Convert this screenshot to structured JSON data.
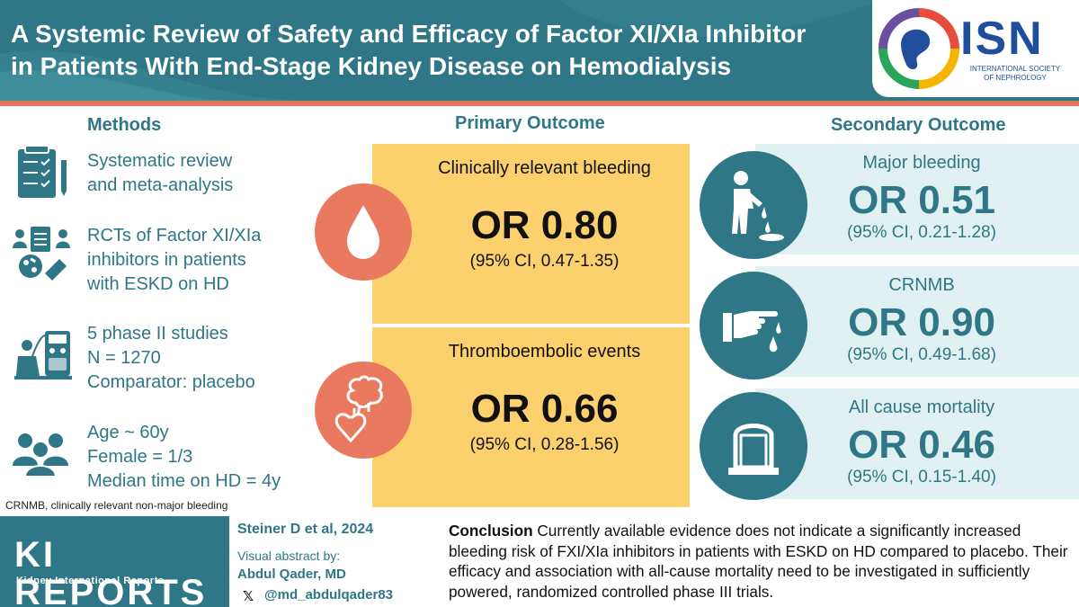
{
  "header": {
    "title_line1": "A Systemic Review of Safety and Efficacy of Factor XI/XIa Inhibitor",
    "title_line2": "in Patients With End-Stage Kidney Disease on Hemodialysis",
    "logo_text": "ISN",
    "logo_sub_line1": "INTERNATIONAL SOCIETY",
    "logo_sub_line2": "OF NEPHROLOGY"
  },
  "methods": {
    "title": "Methods",
    "items": [
      {
        "icon": "checklist-icon",
        "lines": [
          "Systematic review",
          "and meta-analysis"
        ]
      },
      {
        "icon": "rct-icon",
        "lines": [
          "RCTs of Factor XI/XIa",
          "inhibitors in patients",
          "with ESKD on HD"
        ]
      },
      {
        "icon": "dialysis-icon",
        "lines": [
          "5 phase II studies",
          "N = 1270",
          "Comparator: placebo"
        ]
      },
      {
        "icon": "people-icon",
        "lines": [
          "Age ~ 60y",
          "Female = 1/3",
          "Median time on HD = 4y"
        ]
      }
    ],
    "footnote": "CRNMB, clinically relevant non-major bleeding"
  },
  "primary": {
    "title": "Primary Outcome",
    "outcomes": [
      {
        "label": "Clinically relevant bleeding",
        "or": "OR 0.80",
        "ci": "(95% CI, 0.47-1.35)",
        "icon": "blood-drop-icon"
      },
      {
        "label": "Thromboembolic events",
        "or": "OR 0.66",
        "ci": "(95% CI, 0.28-1.56)",
        "icon": "brain-heart-icon"
      }
    ]
  },
  "secondary": {
    "title": "Secondary Outcome",
    "outcomes": [
      {
        "label": "Major bleeding",
        "or": "OR 0.51",
        "ci": "(95% CI, 0.21-1.28)",
        "icon": "bleeding-person-icon"
      },
      {
        "label": "CRNMB",
        "or": "OR 0.90",
        "ci": "(95% CI, 0.49-1.68)",
        "icon": "bleeding-hand-icon"
      },
      {
        "label": "All cause mortality",
        "or": "OR 0.46",
        "ci": "(95% CI, 0.15-1.40)",
        "icon": "tombstone-icon"
      }
    ]
  },
  "footer": {
    "journal_name": "KI REPORTS",
    "journal_sub": "Kidney International Reports",
    "author": "Steiner D et al, 2024",
    "visual_label_line1": "Visual abstract by:",
    "visual_name": "Abdul Qader, MD",
    "x_glyph": "𝕏",
    "handle": "@md_abdulqader83",
    "conclusion_label": "Conclusion",
    "conclusion_text": " Currently available evidence does not indicate a significantly increased bleeding risk of FXI/XIa inhibitors in patients with ESKD on HD compared to placebo. Their efficacy and association with all-cause mortality need to be investigated in sufficiently powered, randomized controlled phase III trials."
  },
  "colors": {
    "teal": "#2f7786",
    "coral": "#e97a5f",
    "yellow": "#fdd06e",
    "light_teal": "#e1f1f3",
    "navy": "#1f4e9c"
  }
}
